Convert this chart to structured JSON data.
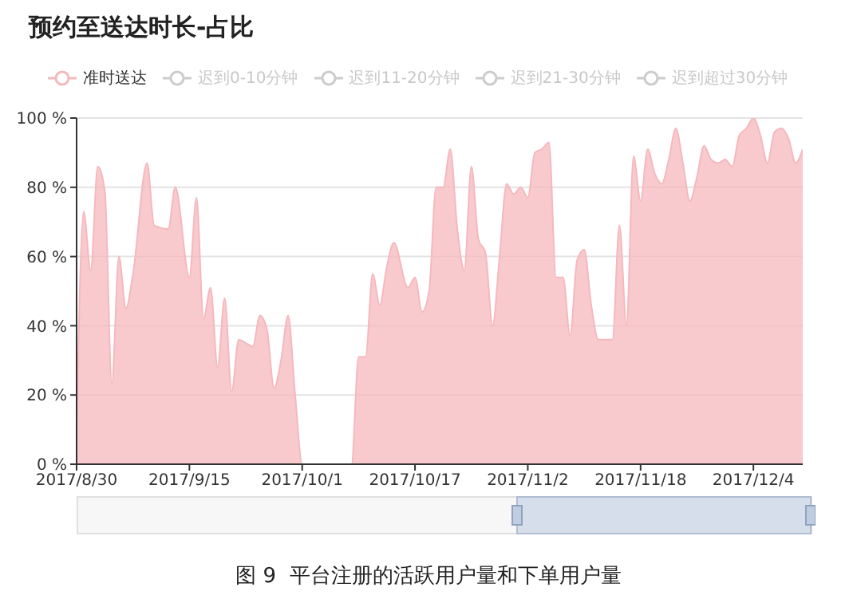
{
  "chart_data": {
    "type": "area",
    "title": "预约至送达时长-占比",
    "x": [
      "2017-08-30",
      "2017-08-31",
      "2017-09-01",
      "2017-09-02",
      "2017-09-03",
      "2017-09-04",
      "2017-09-05",
      "2017-09-06",
      "2017-09-07",
      "2017-09-09",
      "2017-09-10",
      "2017-09-12",
      "2017-09-13",
      "2017-09-15",
      "2017-09-16",
      "2017-09-17",
      "2017-09-18",
      "2017-09-19",
      "2017-09-20",
      "2017-09-21",
      "2017-09-22",
      "2017-09-23",
      "2017-09-24",
      "2017-09-25",
      "2017-09-26",
      "2017-09-27",
      "2017-09-28",
      "2017-09-29",
      "2017-09-30",
      "2017-10-01",
      "2017-10-08",
      "2017-10-09",
      "2017-10-10",
      "2017-10-11",
      "2017-10-12",
      "2017-10-13",
      "2017-10-14",
      "2017-10-16",
      "2017-10-17",
      "2017-10-18",
      "2017-10-19",
      "2017-10-20",
      "2017-10-21",
      "2017-10-22",
      "2017-10-23",
      "2017-10-24",
      "2017-10-25",
      "2017-10-26",
      "2017-10-27",
      "2017-10-28",
      "2017-10-29",
      "2017-10-30",
      "2017-10-31",
      "2017-11-01",
      "2017-11-02",
      "2017-11-03",
      "2017-11-04",
      "2017-11-05",
      "2017-11-06",
      "2017-11-07",
      "2017-11-08",
      "2017-11-09",
      "2017-11-10",
      "2017-11-11",
      "2017-11-12",
      "2017-11-13",
      "2017-11-14",
      "2017-11-15",
      "2017-11-16",
      "2017-11-17",
      "2017-11-18",
      "2017-11-19",
      "2017-11-20",
      "2017-11-21",
      "2017-11-22",
      "2017-11-23",
      "2017-11-24",
      "2017-11-25",
      "2017-11-26",
      "2017-11-27",
      "2017-11-28",
      "2017-11-29",
      "2017-11-30",
      "2017-12-01",
      "2017-12-02",
      "2017-12-03",
      "2017-12-04",
      "2017-12-05",
      "2017-12-06",
      "2017-12-07",
      "2017-12-08",
      "2017-12-09",
      "2017-12-10",
      "2017-12-11"
    ],
    "series": [
      {
        "name": "准时送达",
        "color": "#f5b8bd",
        "values": [
          10,
          73,
          56,
          86,
          79,
          23,
          60,
          45,
          55,
          87,
          69,
          68,
          80,
          54,
          77,
          42,
          51,
          28,
          48,
          21,
          36,
          35,
          34,
          43,
          39,
          22,
          30,
          43,
          20,
          0,
          0,
          31,
          31,
          55,
          46,
          57,
          64,
          51,
          54,
          44,
          50,
          80,
          80,
          91,
          68,
          56,
          86,
          65,
          61,
          40,
          60,
          81,
          78,
          80,
          77,
          90,
          91,
          93,
          54,
          54,
          37,
          59,
          62,
          46,
          36,
          36,
          36,
          69,
          40,
          89,
          76,
          91,
          84,
          81,
          88,
          97,
          87,
          76,
          83,
          92,
          88,
          87,
          88,
          86,
          95,
          97,
          100,
          95,
          87,
          96,
          97,
          94,
          87,
          91
        ]
      },
      {
        "name": "迟到0-10分钟",
        "color": "#cccccc",
        "values": [
          null,
          null,
          null,
          null,
          null,
          null,
          null,
          null,
          null,
          null,
          null,
          null,
          null,
          null,
          null,
          null,
          null,
          null,
          null,
          null,
          null,
          null,
          null,
          null,
          null,
          null,
          null,
          null,
          null,
          null,
          null,
          null,
          null,
          null,
          null,
          null,
          null,
          null,
          null,
          null,
          null,
          null,
          null,
          null,
          null,
          null,
          null,
          null,
          null,
          null,
          null,
          null,
          null,
          null,
          null,
          null,
          null,
          null,
          null,
          null,
          null,
          null,
          null,
          null,
          null,
          null,
          null,
          null,
          null,
          null,
          null,
          null,
          null,
          null,
          null,
          null,
          null,
          null,
          null,
          null,
          null,
          null,
          null,
          null,
          null,
          null,
          null,
          null,
          null,
          null,
          null,
          null,
          null,
          null
        ]
      },
      {
        "name": "迟到11-20分钟",
        "color": "#cccccc",
        "values": [
          null,
          null,
          null,
          null,
          null,
          null,
          null,
          null,
          null,
          null,
          null,
          null,
          null,
          null,
          null,
          null,
          null,
          null,
          null,
          null,
          null,
          null,
          null,
          null,
          null,
          null,
          null,
          null,
          null,
          null,
          null,
          null,
          null,
          null,
          null,
          null,
          null,
          null,
          null,
          null,
          null,
          null,
          null,
          null,
          null,
          null,
          null,
          null,
          null,
          null,
          null,
          null,
          null,
          null,
          null,
          null,
          null,
          null,
          null,
          null,
          null,
          null,
          null,
          null,
          null,
          null,
          null,
          null,
          null,
          null,
          null,
          null,
          null,
          null,
          null,
          null,
          null,
          null,
          null,
          null,
          null,
          null,
          null,
          null,
          null,
          null,
          null,
          null,
          null,
          null,
          null,
          null,
          null,
          null
        ]
      },
      {
        "name": "迟到21-30分钟",
        "color": "#cccccc",
        "values": [
          null,
          null,
          null,
          null,
          null,
          null,
          null,
          null,
          null,
          null,
          null,
          null,
          null,
          null,
          null,
          null,
          null,
          null,
          null,
          null,
          null,
          null,
          null,
          null,
          null,
          null,
          null,
          null,
          null,
          null,
          null,
          null,
          null,
          null,
          null,
          null,
          null,
          null,
          null,
          null,
          null,
          null,
          null,
          null,
          null,
          null,
          null,
          null,
          null,
          null,
          null,
          null,
          null,
          null,
          null,
          null,
          null,
          null,
          null,
          null,
          null,
          null,
          null,
          null,
          null,
          null,
          null,
          null,
          null,
          null,
          null,
          null,
          null,
          null,
          null,
          null,
          null,
          null,
          null,
          null,
          null,
          null,
          null,
          null,
          null,
          null,
          null,
          null,
          null,
          null,
          null,
          null,
          null,
          null
        ]
      },
      {
        "name": "迟到超过30分钟",
        "color": "#cccccc",
        "values": [
          null,
          null,
          null,
          null,
          null,
          null,
          null,
          null,
          null,
          null,
          null,
          null,
          null,
          null,
          null,
          null,
          null,
          null,
          null,
          null,
          null,
          null,
          null,
          null,
          null,
          null,
          null,
          null,
          null,
          null,
          null,
          null,
          null,
          null,
          null,
          null,
          null,
          null,
          null,
          null,
          null,
          null,
          null,
          null,
          null,
          null,
          null,
          null,
          null,
          null,
          null,
          null,
          null,
          null,
          null,
          null,
          null,
          null,
          null,
          null,
          null,
          null,
          null,
          null,
          null,
          null,
          null,
          null,
          null,
          null,
          null,
          null,
          null,
          null,
          null,
          null,
          null,
          null,
          null,
          null,
          null,
          null,
          null,
          null,
          null,
          null,
          null,
          null,
          null,
          null,
          null,
          null,
          null,
          null
        ]
      }
    ],
    "xlim": [
      "2017-08-30",
      "2017-12-11"
    ],
    "xticks": [
      {
        "value": "2017-08-30",
        "label": "2017/8/30"
      },
      {
        "value": "2017-09-15",
        "label": "2017/9/15"
      },
      {
        "value": "2017-10-01",
        "label": "2017/10/1"
      },
      {
        "value": "2017-10-17",
        "label": "2017/10/17"
      },
      {
        "value": "2017-11-02",
        "label": "2017/11/2"
      },
      {
        "value": "2017-11-18",
        "label": "2017/11/18"
      },
      {
        "value": "2017-12-04",
        "label": "2017/12/4"
      }
    ],
    "ylim": [
      0,
      100
    ],
    "yticks": [
      {
        "value": 0,
        "label": "0 %"
      },
      {
        "value": 20,
        "label": "20 %"
      },
      {
        "value": 40,
        "label": "40 %"
      },
      {
        "value": 60,
        "label": "60 %"
      },
      {
        "value": 80,
        "label": "80 %"
      },
      {
        "value": 100,
        "label": "100 %"
      }
    ],
    "grid": "y",
    "legend": "top left",
    "marker": "none",
    "line_style": "solid",
    "annotations": [
      "图 9  平台注册的活跃用户量和下单用户量"
    ]
  }
}
